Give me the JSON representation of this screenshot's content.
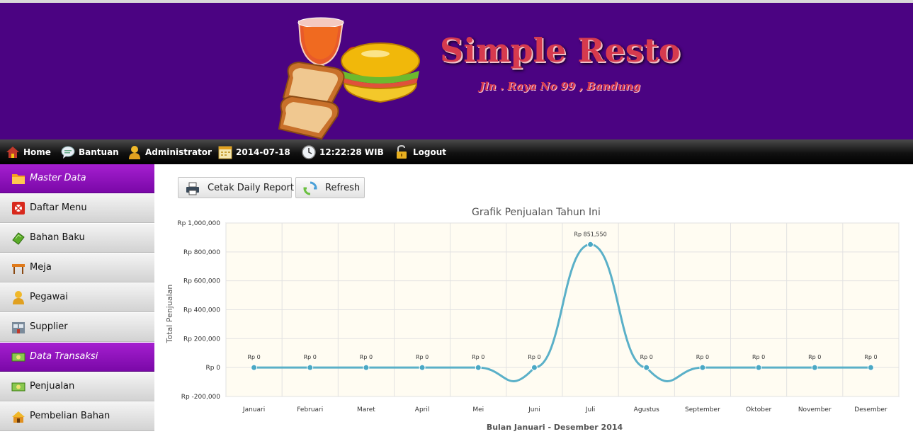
{
  "header": {
    "title": "Simple Resto",
    "address": "Jln . Raya No 99 , Bandung"
  },
  "nav": {
    "items": [
      {
        "label": "Home",
        "icon": "home-icon"
      },
      {
        "label": "Bantuan",
        "icon": "chat-bubble-icon"
      },
      {
        "label": "Administrator",
        "icon": "user-icon"
      },
      {
        "label": "2014-07-18",
        "icon": "calendar-icon"
      },
      {
        "label": "12:22:28 WIB",
        "icon": "clock-icon"
      },
      {
        "label": "Logout",
        "icon": "padlock-icon"
      }
    ]
  },
  "sidebar": {
    "items": [
      {
        "label": "Master Data",
        "type": "section",
        "icon": "folder-icon"
      },
      {
        "label": "Daftar Menu",
        "type": "item",
        "icon": "menu-book-icon"
      },
      {
        "label": "Bahan Baku",
        "type": "item",
        "icon": "ingredients-icon"
      },
      {
        "label": "Meja",
        "type": "item",
        "icon": "table-icon"
      },
      {
        "label": "Pegawai",
        "type": "item",
        "icon": "employee-icon"
      },
      {
        "label": "Supplier",
        "type": "item",
        "icon": "supplier-icon"
      },
      {
        "label": "Data Transaksi",
        "type": "section",
        "icon": "money-icon"
      },
      {
        "label": "Penjualan",
        "type": "item",
        "icon": "money-icon"
      },
      {
        "label": "Pembelian Bahan",
        "type": "item",
        "icon": "purchase-icon"
      }
    ]
  },
  "toolbar": {
    "print_label": "Cetak Daily Report",
    "refresh_label": "Refresh"
  },
  "colors": {
    "header_bg": "#4b0382",
    "brand_text": "#d63a4e",
    "section_bg": "#8a10b8",
    "series_line": "#5ab0c8",
    "plot_bg": "#fffcf2"
  },
  "chart_data": {
    "type": "line",
    "title": "Grafik Penjualan Tahun Ini",
    "xlabel": "Bulan Januari - Desember 2014",
    "ylabel": "Total Penjualan",
    "categories": [
      "Januari",
      "Februari",
      "Maret",
      "April",
      "Mei",
      "Juni",
      "Juli",
      "Agustus",
      "September",
      "Oktober",
      "November",
      "Desember"
    ],
    "values": [
      0,
      0,
      0,
      0,
      0,
      0,
      851550,
      0,
      0,
      0,
      0,
      0
    ],
    "data_labels": [
      "Rp 0",
      "Rp 0",
      "Rp 0",
      "Rp 0",
      "Rp 0",
      "Rp 0",
      "Rp 851,550",
      "Rp 0",
      "Rp 0",
      "Rp 0",
      "Rp 0",
      "Rp 0"
    ],
    "ylim": [
      -200000,
      1000000
    ],
    "yticks": [
      -200000,
      0,
      200000,
      400000,
      600000,
      800000,
      1000000
    ],
    "ytick_labels": [
      "Rp -200,000",
      "Rp 0",
      "Rp 200,000",
      "Rp 400,000",
      "Rp 600,000",
      "Rp 800,000",
      "Rp 1,000,000"
    ],
    "grid": true,
    "smooth": true
  }
}
